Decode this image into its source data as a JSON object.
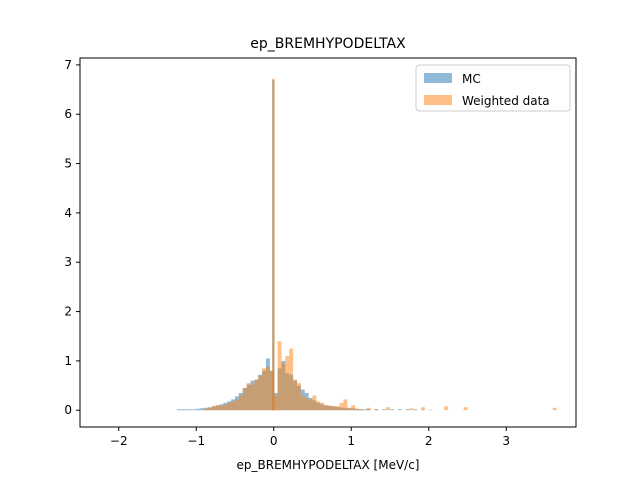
{
  "chart_data": {
    "type": "bar",
    "title": "ep_BREMHYPODELTAX",
    "xlabel": "ep_BREMHYPODELTAX [MeV/c]",
    "ylabel": "",
    "xlim": [
      -2.5,
      3.9
    ],
    "ylim": [
      -0.34,
      7.14
    ],
    "xticks": [
      -2,
      -1,
      0,
      1,
      2,
      3
    ],
    "xtick_labels": [
      "−2",
      "−1",
      "0",
      "1",
      "2",
      "3"
    ],
    "yticks": [
      0,
      1,
      2,
      3,
      4,
      5,
      6,
      7
    ],
    "ytick_labels": [
      "0",
      "1",
      "2",
      "3",
      "4",
      "5",
      "6",
      "7"
    ],
    "legend_position": "upper right",
    "grid": false,
    "series": [
      {
        "name": "MC",
        "color": "#1f77b4",
        "opacity": 0.5,
        "bins": [
          [
            -1.25,
            0.02
          ],
          [
            -1.2,
            0.02
          ],
          [
            -1.15,
            0.02
          ],
          [
            -1.1,
            0.02
          ],
          [
            -1.05,
            0.02
          ],
          [
            -1.0,
            0.03
          ],
          [
            -0.95,
            0.04
          ],
          [
            -0.9,
            0.05
          ],
          [
            -0.85,
            0.06
          ],
          [
            -0.8,
            0.08
          ],
          [
            -0.75,
            0.1
          ],
          [
            -0.7,
            0.12
          ],
          [
            -0.65,
            0.15
          ],
          [
            -0.6,
            0.18
          ],
          [
            -0.55,
            0.22
          ],
          [
            -0.5,
            0.28
          ],
          [
            -0.45,
            0.35
          ],
          [
            -0.4,
            0.45
          ],
          [
            -0.35,
            0.52
          ],
          [
            -0.3,
            0.6
          ],
          [
            -0.25,
            0.62
          ],
          [
            -0.2,
            0.72
          ],
          [
            -0.15,
            0.8
          ],
          [
            -0.1,
            1.05
          ],
          [
            -0.05,
            0.8
          ],
          [
            -0.02,
            6.7
          ],
          [
            0.0,
            0.35
          ],
          [
            0.05,
            0.85
          ],
          [
            0.1,
            1.0
          ],
          [
            0.15,
            0.75
          ],
          [
            0.2,
            0.72
          ],
          [
            0.25,
            0.6
          ],
          [
            0.3,
            0.5
          ],
          [
            0.35,
            0.42
          ],
          [
            0.4,
            0.35
          ],
          [
            0.45,
            0.25
          ],
          [
            0.5,
            0.2
          ],
          [
            0.55,
            0.15
          ],
          [
            0.6,
            0.12
          ],
          [
            0.65,
            0.1
          ],
          [
            0.7,
            0.08
          ],
          [
            0.75,
            0.08
          ],
          [
            0.8,
            0.07
          ],
          [
            0.85,
            0.05
          ],
          [
            0.9,
            0.05
          ],
          [
            0.95,
            0.04
          ],
          [
            1.0,
            0.04
          ],
          [
            1.05,
            0.03
          ],
          [
            1.1,
            0.02
          ],
          [
            1.15,
            0.02
          ],
          [
            1.2,
            0.02
          ],
          [
            1.3,
            0.02
          ],
          [
            1.4,
            0.02
          ],
          [
            1.5,
            0.02
          ],
          [
            1.6,
            0.02
          ],
          [
            1.7,
            0.02
          ],
          [
            1.8,
            0.02
          ],
          [
            1.9,
            0.01
          ],
          [
            2.0,
            0.01
          ]
        ]
      },
      {
        "name": "Weighted data",
        "color": "#ff7f0e",
        "opacity": 0.5,
        "bins": [
          [
            -0.9,
            0.03
          ],
          [
            -0.85,
            0.05
          ],
          [
            -0.8,
            0.08
          ],
          [
            -0.75,
            0.1
          ],
          [
            -0.7,
            0.1
          ],
          [
            -0.65,
            0.12
          ],
          [
            -0.6,
            0.15
          ],
          [
            -0.55,
            0.18
          ],
          [
            -0.5,
            0.22
          ],
          [
            -0.45,
            0.3
          ],
          [
            -0.4,
            0.45
          ],
          [
            -0.35,
            0.55
          ],
          [
            -0.3,
            0.52
          ],
          [
            -0.25,
            0.62
          ],
          [
            -0.2,
            0.7
          ],
          [
            -0.15,
            0.85
          ],
          [
            -0.1,
            0.88
          ],
          [
            -0.05,
            0.8
          ],
          [
            -0.02,
            6.72
          ],
          [
            0.0,
            0.3
          ],
          [
            0.05,
            1.4
          ],
          [
            0.1,
            0.95
          ],
          [
            0.15,
            1.1
          ],
          [
            0.2,
            1.25
          ],
          [
            0.25,
            0.62
          ],
          [
            0.3,
            0.55
          ],
          [
            0.35,
            0.3
          ],
          [
            0.4,
            0.25
          ],
          [
            0.45,
            0.22
          ],
          [
            0.5,
            0.3
          ],
          [
            0.55,
            0.18
          ],
          [
            0.6,
            0.15
          ],
          [
            0.65,
            0.1
          ],
          [
            0.7,
            0.1
          ],
          [
            0.75,
            0.08
          ],
          [
            0.8,
            0.08
          ],
          [
            0.85,
            0.15
          ],
          [
            0.9,
            0.22
          ],
          [
            0.95,
            0.05
          ],
          [
            1.0,
            0.1
          ],
          [
            1.05,
            0.03
          ],
          [
            1.1,
            0.02
          ],
          [
            1.2,
            0.05
          ],
          [
            1.3,
            0.02
          ],
          [
            1.45,
            0.06
          ],
          [
            1.75,
            0.04
          ],
          [
            1.9,
            0.06
          ],
          [
            2.2,
            0.08
          ],
          [
            2.45,
            0.06
          ],
          [
            3.6,
            0.05
          ]
        ]
      }
    ]
  }
}
